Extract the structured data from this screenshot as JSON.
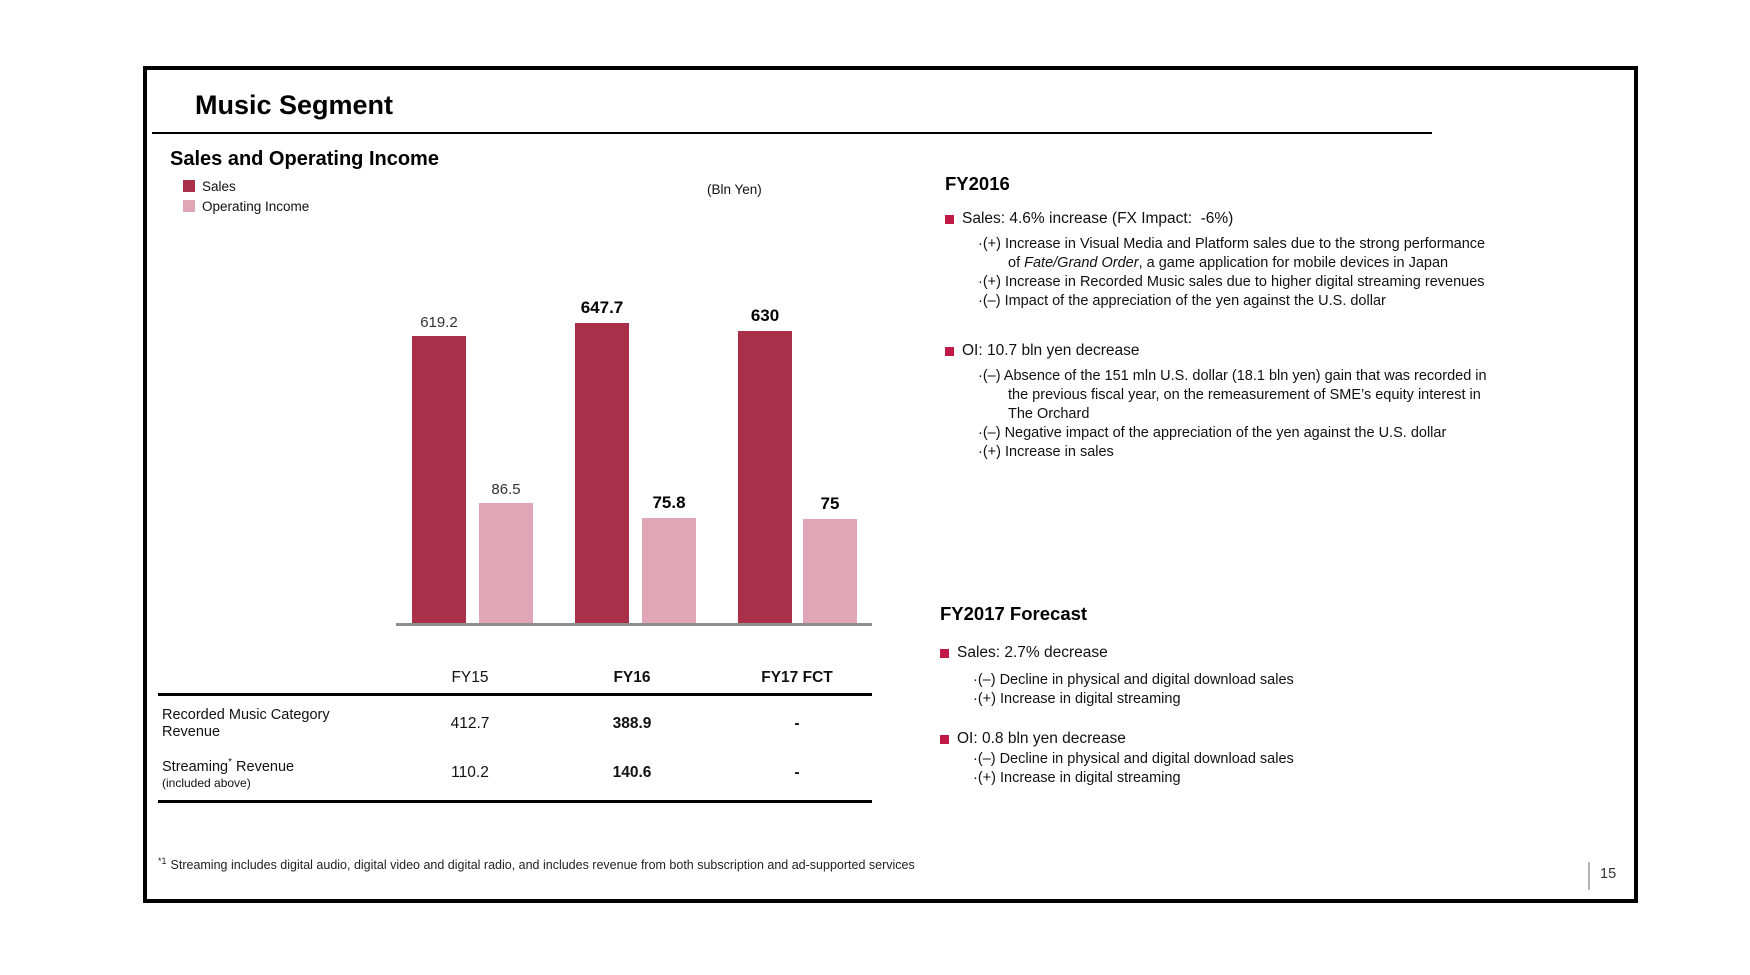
{
  "slide": {
    "title": "Music Segment",
    "page_number": "15"
  },
  "chart_section": {
    "heading": "Sales and Operating Income",
    "unit_label": "(Bln Yen)"
  },
  "chart_data": {
    "type": "bar",
    "title": "Sales and Operating Income",
    "unit": "(Bln Yen)",
    "categories": [
      "FY15",
      "FY16",
      "FY17 FCT"
    ],
    "series": [
      {
        "name": "Sales",
        "color": "#A93048",
        "values": [
          619.2,
          647.7,
          630
        ],
        "labels": [
          "619.2",
          "647.7",
          "630"
        ]
      },
      {
        "name": "Operating Income",
        "color": "#E0A6B7",
        "values": [
          86.5,
          75.8,
          75
        ],
        "labels": [
          "86.5",
          "75.8",
          "75"
        ]
      }
    ],
    "label_bold_per_category": [
      false,
      true,
      true
    ],
    "grid": false,
    "legend_position": "top-left",
    "note": "Operating Income bars drawn on an enlarged scale; no y-axis shown"
  },
  "table": {
    "col_headers": [
      "",
      "FY15",
      "FY16",
      "FY17 FCT"
    ],
    "rows": [
      {
        "label_line1": "Recorded Music Category",
        "label_line2": "Revenue",
        "values": [
          "412.7",
          "388.9",
          "-"
        ]
      },
      {
        "label_main": "Streaming",
        "label_sup": "*",
        "label_rest": "Revenue",
        "label_note": "(included above)",
        "values": [
          "110.2",
          "140.6",
          "-"
        ]
      }
    ]
  },
  "fy2016": {
    "heading": "FY2016",
    "sales_bullet": "Sales: 4.6% increase (FX Impact:  -6%)",
    "sales_subs": {
      "s1_pre": "·(+) Increase in Visual Media and Platform sales due to the strong performance of ",
      "s1_italic": "Fate/Grand Order",
      "s1_post": ", a game application for mobile devices in Japan",
      "s2": "·(+) Increase in Recorded Music sales due to higher digital streaming revenues",
      "s3": "·(–) Impact of the appreciation of the yen against the U.S. dollar"
    },
    "oi_bullet": "OI: 10.7 bln yen decrease",
    "oi_subs": {
      "s1": "·(–) Absence of the 151 mln U.S. dollar (18.1 bln yen) gain that was recorded in the previous fiscal year, on the remeasurement of SME’s equity interest in The Orchard",
      "s2": "·(–) Negative impact of the appreciation of the yen against the U.S. dollar",
      "s3": "·(+) Increase in sales"
    }
  },
  "fy2017": {
    "heading": "FY2017 Forecast",
    "sales_bullet": "Sales: 2.7% decrease",
    "sales_subs": [
      "·(–) Decline in physical and digital download sales",
      "·(+) Increase in digital streaming"
    ],
    "oi_bullet": "OI: 0.8 bln yen decrease",
    "oi_subs": [
      "·(–) Decline in physical and digital download sales",
      "·(+) Increase in digital streaming"
    ]
  },
  "footnote": {
    "marker": "*1",
    "text": "Streaming includes digital audio, digital video and digital radio, and includes revenue from both subscription and ad-supported services"
  },
  "colors": {
    "sales_bar": "#A93048",
    "operating_income_bar": "#E0A6B7",
    "bullet_marker": "#C01945",
    "axis_line": "#8f8f8f"
  }
}
